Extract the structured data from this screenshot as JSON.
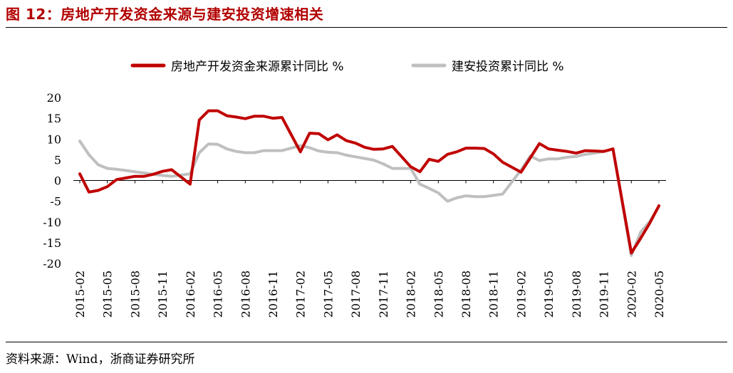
{
  "figure_title": "图 12：房地产开发资金来源与建安投资增速相关",
  "source": "资料来源：Wind，浙商证券研究所",
  "colors": {
    "title": "#b20000",
    "series1": "#c00000",
    "series2": "#bfbfbf"
  },
  "chart_data": {
    "type": "line",
    "title": "",
    "xlabel": "",
    "ylabel": "",
    "ylim": [
      -20,
      20
    ],
    "yticks": [
      "20",
      "15",
      "10",
      "5",
      "0",
      "-5",
      "-10",
      "-15",
      "-20"
    ],
    "xtick_labels": [
      "2015-02",
      "2015-05",
      "2015-08",
      "2015-11",
      "2016-02",
      "2016-05",
      "2016-08",
      "2016-11",
      "2017-02",
      "2017-05",
      "2017-08",
      "2017-11",
      "2018-02",
      "2018-05",
      "2018-08",
      "2018-11",
      "2019-02",
      "2019-05",
      "2019-08",
      "2019-11",
      "2020-02",
      "2020-05"
    ],
    "x": [
      "2015-02",
      "2015-03",
      "2015-04",
      "2015-05",
      "2015-06",
      "2015-07",
      "2015-08",
      "2015-09",
      "2015-10",
      "2015-11",
      "2015-12",
      "2016-02",
      "2016-03",
      "2016-04",
      "2016-05",
      "2016-06",
      "2016-07",
      "2016-08",
      "2016-09",
      "2016-10",
      "2016-11",
      "2016-12",
      "2017-02",
      "2017-03",
      "2017-04",
      "2017-05",
      "2017-06",
      "2017-07",
      "2017-08",
      "2017-09",
      "2017-10",
      "2017-11",
      "2017-12",
      "2018-02",
      "2018-03",
      "2018-04",
      "2018-05",
      "2018-06",
      "2018-07",
      "2018-08",
      "2018-09",
      "2018-10",
      "2018-11",
      "2018-12",
      "2019-02",
      "2019-03",
      "2019-04",
      "2019-05",
      "2019-06",
      "2019-07",
      "2019-08",
      "2019-09",
      "2019-10",
      "2019-11",
      "2019-12",
      "2020-02",
      "2020-03",
      "2020-04",
      "2020-05"
    ],
    "legend_position": "top",
    "grid": false,
    "series": [
      {
        "name": "房地产开发资金来源累计同比 %",
        "values": [
          1.6,
          -2.8,
          -2.4,
          -1.5,
          0.2,
          0.6,
          1.0,
          1.0,
          1.5,
          2.2,
          2.6,
          -0.9,
          14.6,
          16.8,
          16.8,
          15.6,
          15.3,
          14.9,
          15.5,
          15.5,
          15.0,
          15.2,
          6.9,
          11.4,
          11.3,
          9.8,
          11.0,
          9.6,
          9.0,
          8.0,
          7.5,
          7.6,
          8.2,
          3.3,
          2.1,
          5.1,
          4.6,
          6.3,
          6.9,
          7.8,
          7.8,
          7.7,
          6.4,
          4.4,
          2.0,
          5.4,
          8.9,
          7.6,
          7.3,
          7.0,
          6.6,
          7.2,
          7.1,
          7.0,
          7.6,
          -17.5,
          -14.0,
          -10.3,
          -6.1
        ]
      },
      {
        "name": "建安投资累计同比 %",
        "values": [
          9.5,
          6.2,
          3.8,
          2.9,
          2.7,
          2.4,
          2.1,
          1.8,
          1.5,
          1.2,
          1.0,
          1.6,
          6.7,
          8.8,
          8.7,
          7.6,
          7.0,
          6.7,
          6.7,
          7.2,
          7.2,
          7.2,
          8.4,
          7.9,
          7.1,
          6.8,
          6.7,
          6.1,
          5.7,
          5.3,
          4.9,
          4.0,
          2.9,
          2.9,
          -0.9,
          -1.9,
          -3.0,
          -5.0,
          -4.2,
          -3.7,
          -3.9,
          -3.9,
          -3.6,
          -3.3,
          2.5,
          5.9,
          4.8,
          5.2,
          5.2,
          5.6,
          5.8,
          6.3,
          6.6,
          7.0,
          7.6,
          -18.1,
          -12.5,
          -9.9,
          -6.3
        ]
      }
    ]
  }
}
